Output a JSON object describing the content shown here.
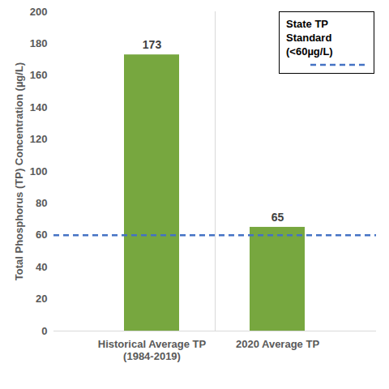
{
  "chart_data": {
    "type": "bar",
    "ylabel": "Total Phosphorus (TP) Concentration (µg/L)",
    "categories": [
      "Historical Average TP\n(1984-2019)",
      "2020 Average TP"
    ],
    "values": [
      173,
      65
    ],
    "color": "#77a73f",
    "ylim": [
      0,
      200
    ],
    "yticks": [
      0,
      20,
      40,
      60,
      80,
      100,
      120,
      140,
      160,
      180,
      200
    ],
    "grid": false,
    "data_labels": true,
    "legend": "top-right",
    "reference_line": {
      "value": 60,
      "label": "State TP Standard (<60µg/L)",
      "color": "#4472c4",
      "line_style": "dashed"
    }
  }
}
